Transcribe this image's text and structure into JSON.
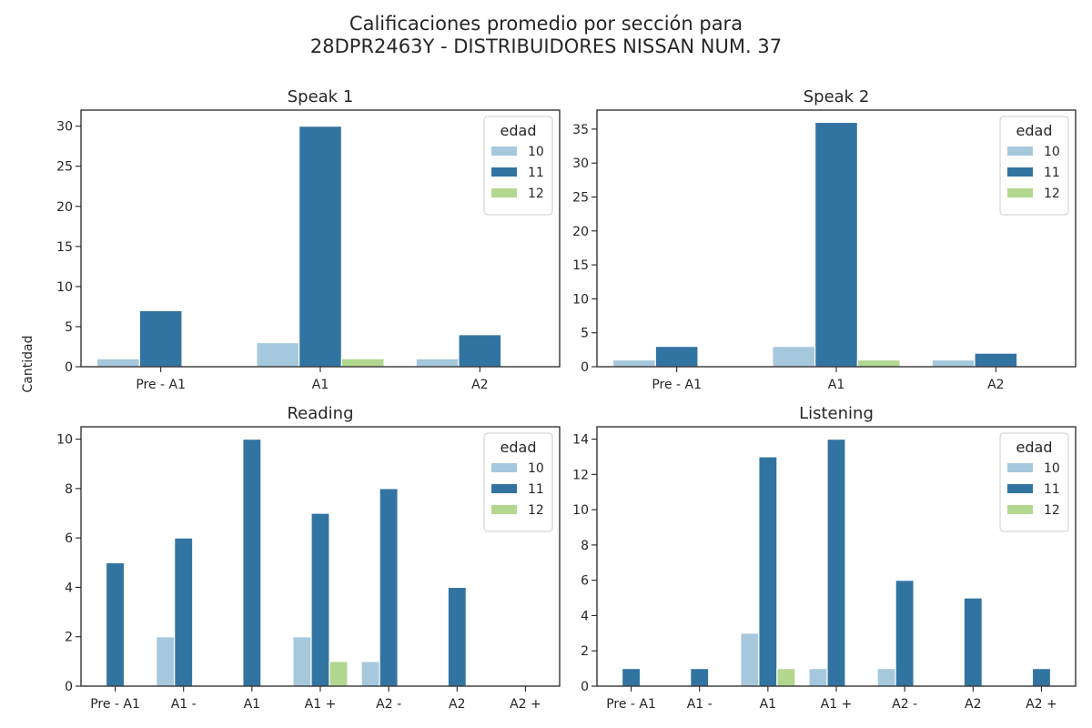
{
  "figure": {
    "title_line1": "Calificaciones promedio por sección para",
    "title_line2": "28DPR2463Y - DISTRIBUIDORES NISSAN NUM. 37",
    "ylabel": "Cantidad"
  },
  "colors": {
    "10": "#a6c8dc",
    "11": "#3274a1",
    "12": "#b2d78f"
  },
  "chart_data": [
    {
      "type": "bar",
      "title": "Speak 1",
      "categories": [
        "Pre - A1",
        "A1",
        "A2"
      ],
      "series": [
        {
          "name": "10",
          "values": [
            1,
            3,
            1
          ]
        },
        {
          "name": "11",
          "values": [
            7,
            30,
            4
          ]
        },
        {
          "name": "12",
          "values": [
            0,
            1,
            0
          ]
        }
      ],
      "ylim": [
        0,
        32
      ],
      "yticks": [
        0,
        5,
        10,
        15,
        20,
        25,
        30
      ],
      "legend": {
        "title": "edad",
        "placement": "top-right"
      }
    },
    {
      "type": "bar",
      "title": "Speak 2",
      "categories": [
        "Pre - A1",
        "A1",
        "A2"
      ],
      "series": [
        {
          "name": "10",
          "values": [
            1,
            3,
            1
          ]
        },
        {
          "name": "11",
          "values": [
            3,
            36,
            2
          ]
        },
        {
          "name": "12",
          "values": [
            0,
            1,
            0
          ]
        }
      ],
      "ylim": [
        0,
        37.8
      ],
      "yticks": [
        0,
        5,
        10,
        15,
        20,
        25,
        30,
        35
      ],
      "legend": {
        "title": "edad",
        "placement": "top-right"
      }
    },
    {
      "type": "bar",
      "title": "Reading",
      "categories": [
        "Pre - A1",
        "A1 -",
        "A1",
        "A1 +",
        "A2 -",
        "A2",
        "A2 +"
      ],
      "series": [
        {
          "name": "10",
          "values": [
            0,
            2,
            0,
            2,
            1,
            0,
            0
          ]
        },
        {
          "name": "11",
          "values": [
            5,
            6,
            10,
            7,
            8,
            4,
            0
          ]
        },
        {
          "name": "12",
          "values": [
            0,
            0,
            0,
            1,
            0,
            0,
            0
          ]
        }
      ],
      "ylim": [
        0,
        10.5
      ],
      "yticks": [
        0,
        2,
        4,
        6,
        8,
        10
      ],
      "legend": {
        "title": "edad",
        "placement": "top-right"
      }
    },
    {
      "type": "bar",
      "title": "Listening",
      "categories": [
        "Pre - A1",
        "A1 -",
        "A1",
        "A1 +",
        "A2 -",
        "A2",
        "A2 +"
      ],
      "series": [
        {
          "name": "10",
          "values": [
            0,
            0,
            3,
            1,
            1,
            0,
            0
          ]
        },
        {
          "name": "11",
          "values": [
            1,
            1,
            13,
            14,
            6,
            5,
            1
          ]
        },
        {
          "name": "12",
          "values": [
            0,
            0,
            1,
            0,
            0,
            0,
            0
          ]
        }
      ],
      "ylim": [
        0,
        14.7
      ],
      "yticks": [
        0,
        2,
        4,
        6,
        8,
        10,
        12,
        14
      ],
      "legend": {
        "title": "edad",
        "placement": "top-right"
      }
    }
  ]
}
